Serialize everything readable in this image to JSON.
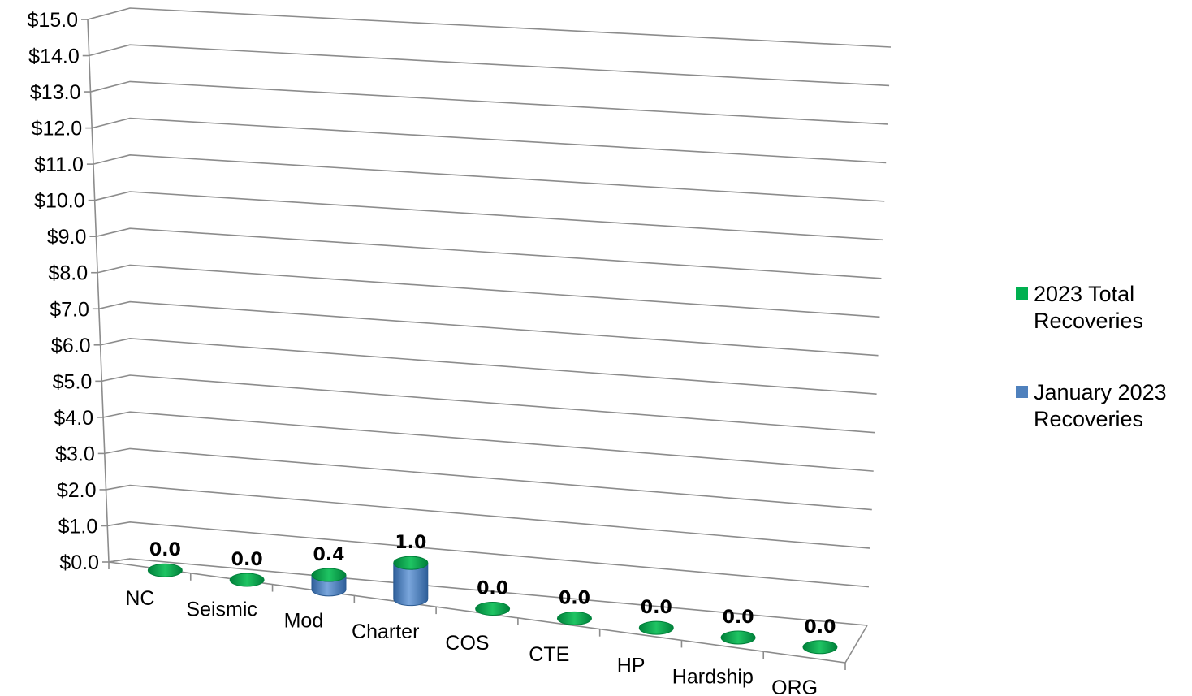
{
  "chart_data": {
    "type": "bar",
    "categories": [
      "NC",
      "Seismic",
      "Mod",
      "Charter",
      "COS",
      "CTE",
      "HP",
      "Hardship",
      "ORG"
    ],
    "series": [
      {
        "name": "2023 Total Recoveries",
        "color": "#00b050",
        "values": [
          0.0,
          0.0,
          0.0,
          0.0,
          0.0,
          0.0,
          0.0,
          0.0,
          0.0
        ]
      },
      {
        "name": "January 2023 Recoveries",
        "color": "#4f81bd",
        "values": [
          0.0,
          0.0,
          0.4,
          1.0,
          0.0,
          0.0,
          0.0,
          0.0,
          0.0
        ]
      }
    ],
    "data_labels": [
      "0.0",
      "0.0",
      "0.4",
      "1.0",
      "0.0",
      "0.0",
      "0.0",
      "0.0",
      "0.0"
    ],
    "y_ticks": [
      "$0.0",
      "$1.0",
      "$2.0",
      "$3.0",
      "$4.0",
      "$5.0",
      "$6.0",
      "$7.0",
      "$8.0",
      "$9.0",
      "$10.0",
      "$11.0",
      "$12.0",
      "$13.0",
      "$14.0",
      "$15.0"
    ],
    "ylim": [
      0,
      15
    ],
    "xlabel": "",
    "ylabel": "",
    "title": "",
    "grid": true,
    "legend_position": "right",
    "bar_shape": "3d-cylinder"
  }
}
